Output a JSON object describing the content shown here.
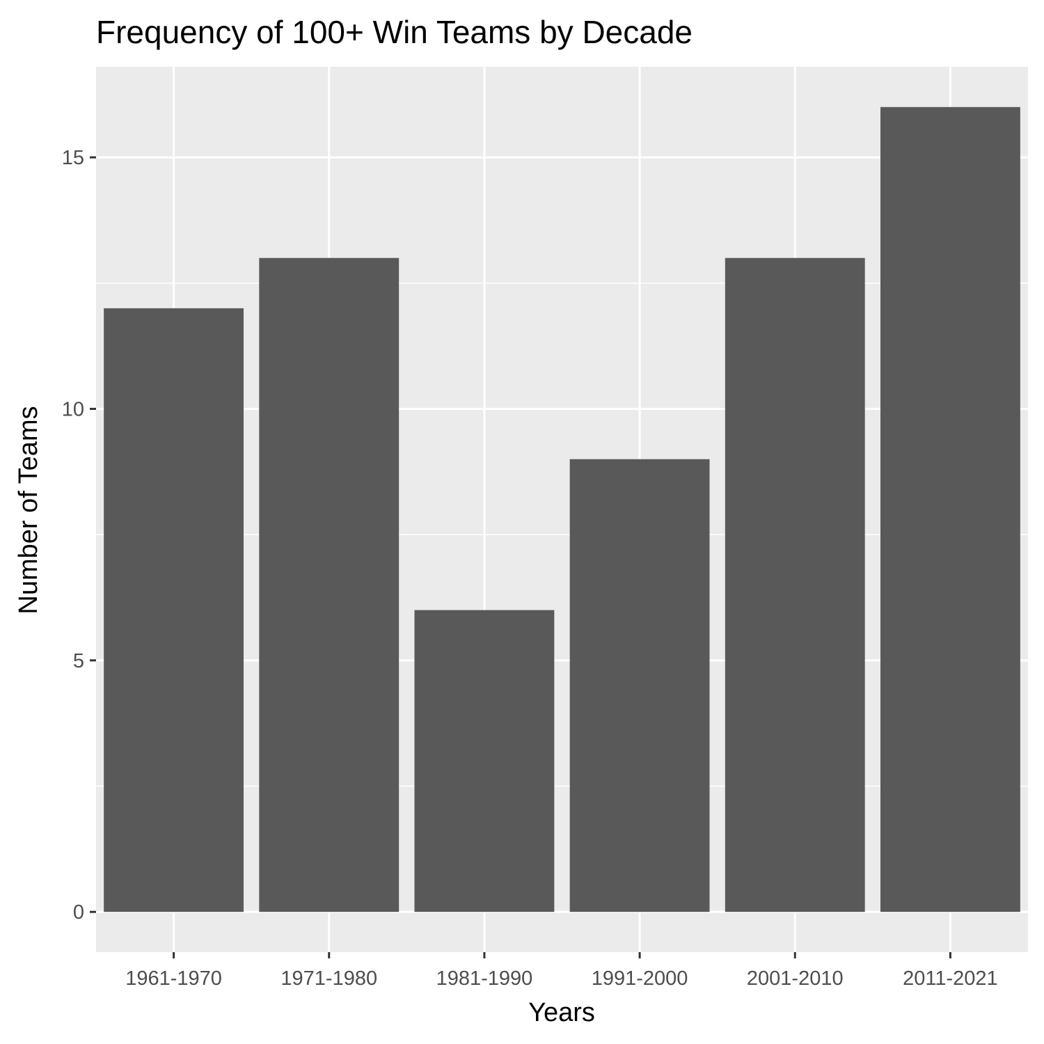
{
  "colors": {
    "panel_background": "#ebebeb",
    "grid_line": "#ffffff",
    "bar_fill": "#595959",
    "tick_mark": "#333333",
    "tick_label": "#4d4d4d",
    "text": "#000000"
  },
  "chart_data": {
    "type": "bar",
    "title": "Frequency of 100+ Win Teams by Decade",
    "xlabel": "Years",
    "ylabel": "Number of Teams",
    "categories": [
      "1961-1970",
      "1971-1980",
      "1981-1990",
      "1991-2000",
      "2001-2010",
      "2011-2021"
    ],
    "values": [
      12,
      13,
      6,
      9,
      13,
      16
    ],
    "ylim": [
      -0.8,
      16.8
    ],
    "yticks": [
      0,
      5,
      10,
      15
    ],
    "ytick_labels": [
      "0",
      "5",
      "10",
      "15"
    ],
    "grid": true,
    "legend": "none"
  }
}
